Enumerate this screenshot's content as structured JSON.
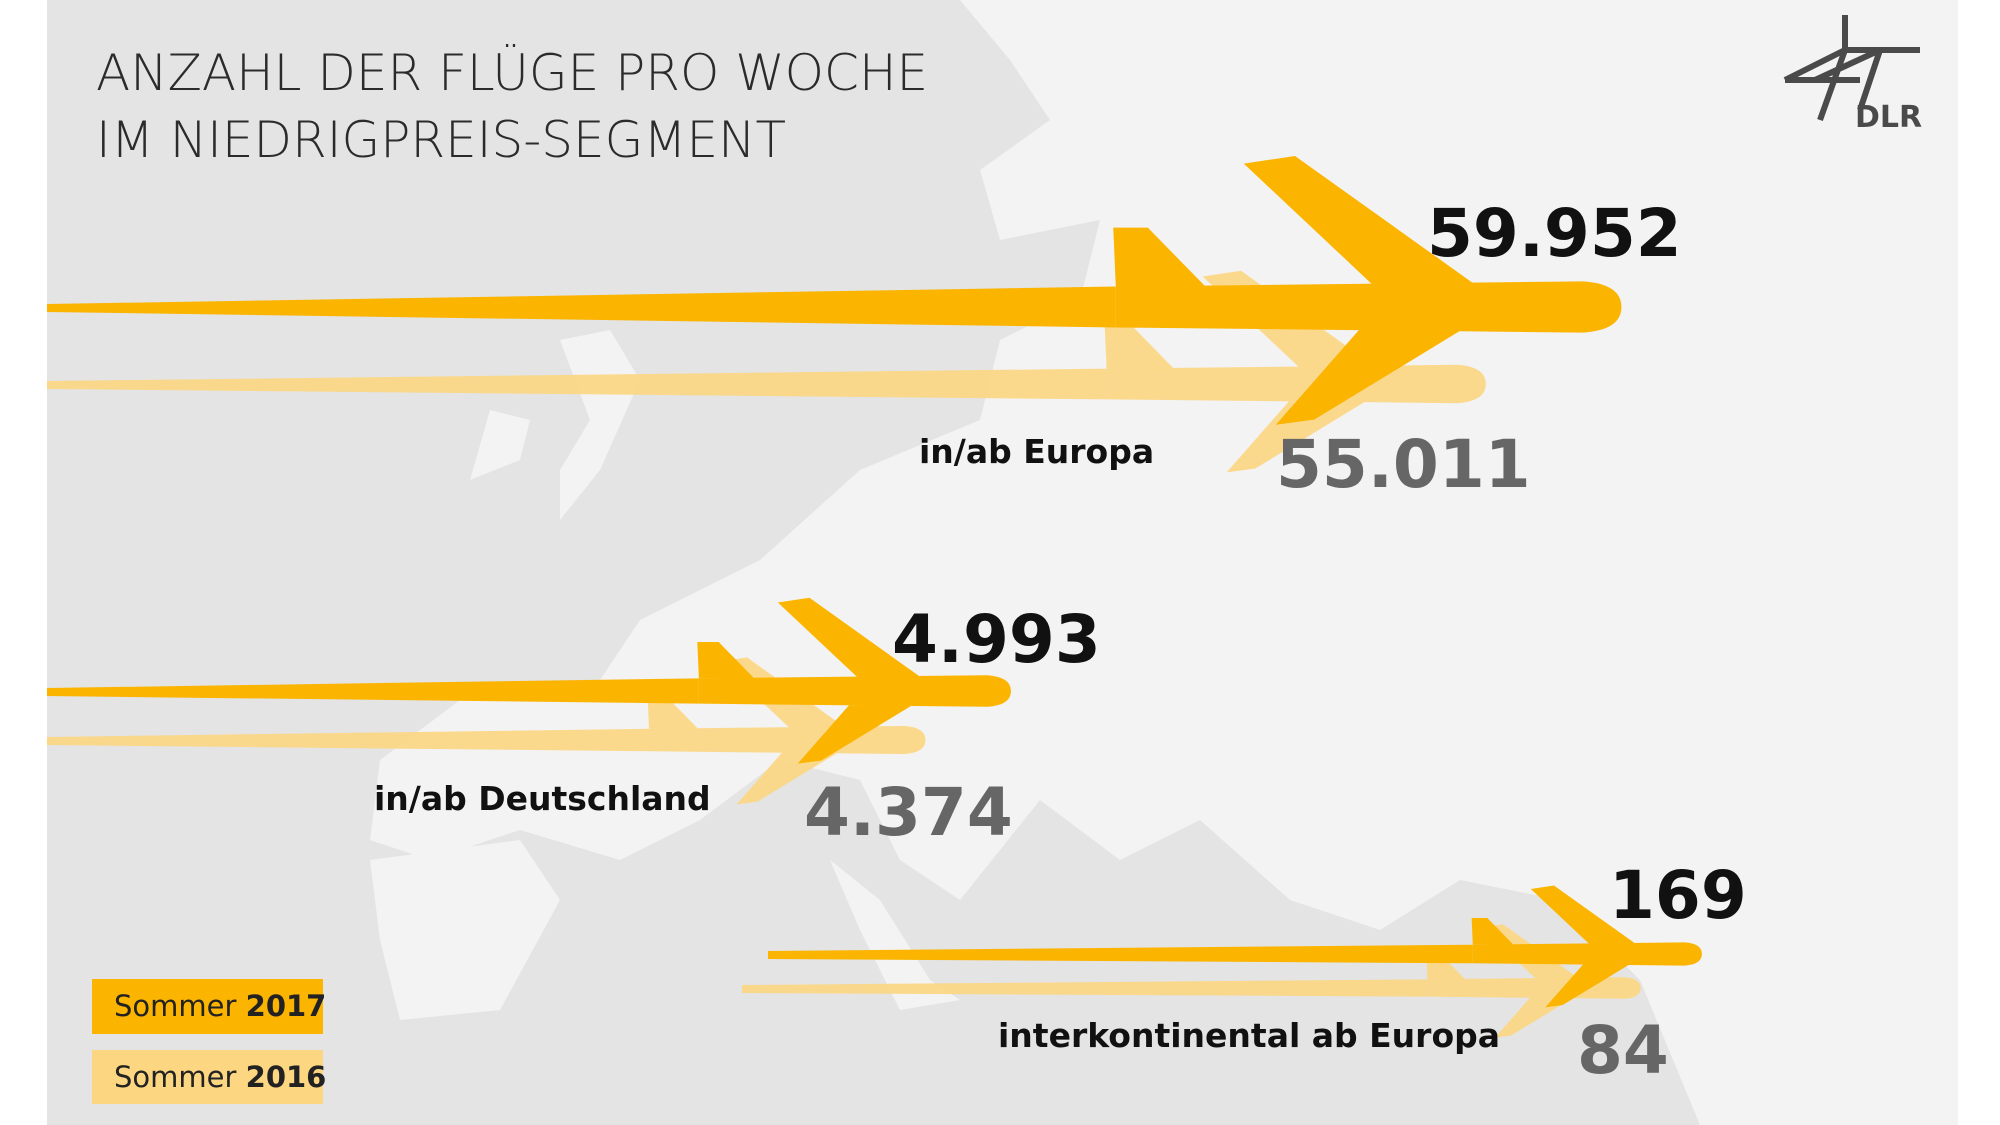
{
  "title": {
    "line1": "ANZAHL DER FLÜGE PRO WOCHE",
    "line2": "IM NIEDRIGPREIS-SEGMENT"
  },
  "logo": "DLR",
  "groups": [
    {
      "caption": "in/ab Europa",
      "value_2017": "59.952",
      "value_2016": "55.011"
    },
    {
      "caption": "in/ab Deutschland",
      "value_2017": "4.993",
      "value_2016": "4.374"
    },
    {
      "caption": "interkontinental ab Europa",
      "value_2017": "169",
      "value_2016": "84"
    }
  ],
  "legend": [
    {
      "label": "Sommer",
      "year": "2017"
    },
    {
      "label": "Sommer",
      "year": "2016"
    }
  ]
}
